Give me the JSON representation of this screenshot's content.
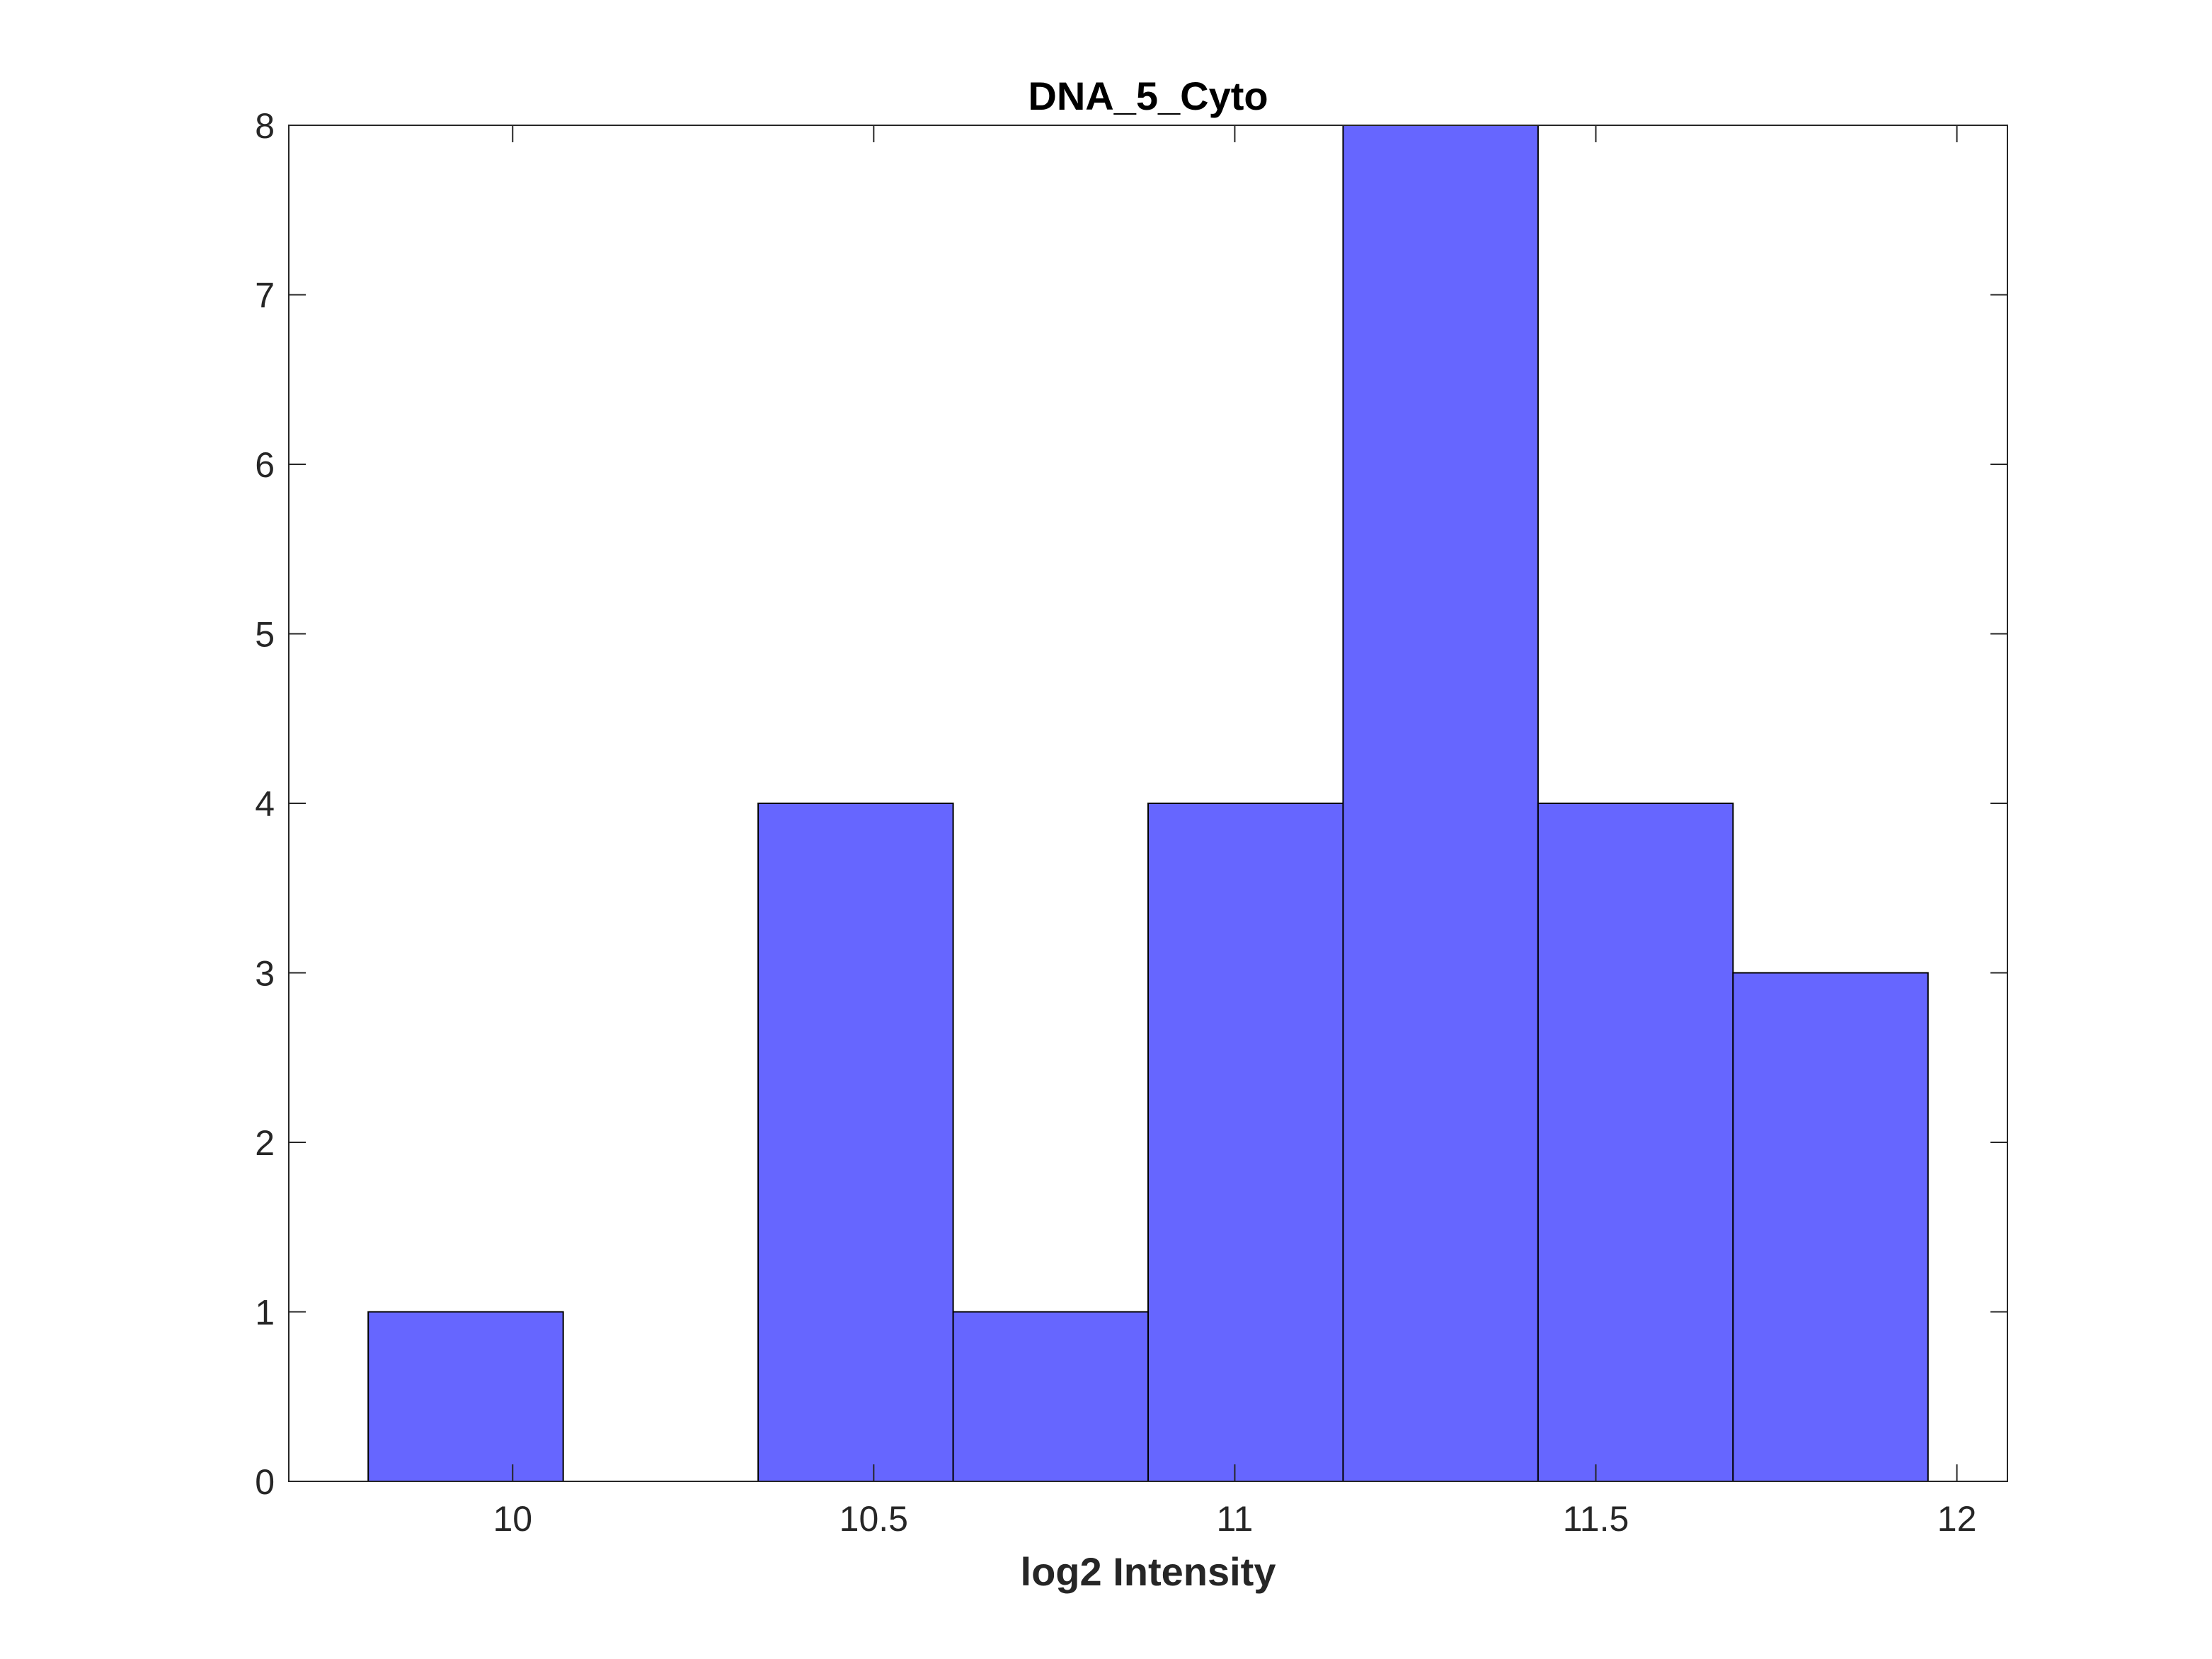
{
  "chart_data": {
    "type": "bar",
    "title": "DNA_5_Cyto",
    "xlabel": "log2 Intensity",
    "ylabel": "",
    "xlim": [
      9.69,
      12.07
    ],
    "ylim": [
      0,
      8
    ],
    "xticks": [
      "10",
      "10.5",
      "11",
      "11.5",
      "12"
    ],
    "xtick_values": [
      10,
      10.5,
      11,
      11.5,
      12
    ],
    "yticks": [
      "0",
      "1",
      "2",
      "3",
      "4",
      "5",
      "6",
      "7",
      "8"
    ],
    "ytick_values": [
      0,
      1,
      2,
      3,
      4,
      5,
      6,
      7,
      8
    ],
    "bin_edges": [
      9.8,
      10.07,
      10.34,
      10.61,
      10.88,
      11.15,
      11.42,
      11.69,
      11.96
    ],
    "values": [
      1,
      0,
      4,
      1,
      4,
      8,
      4,
      3
    ],
    "grid": false,
    "bar_color": "#6666ff",
    "edge_color": "#000000",
    "axis_color": "#262626"
  }
}
